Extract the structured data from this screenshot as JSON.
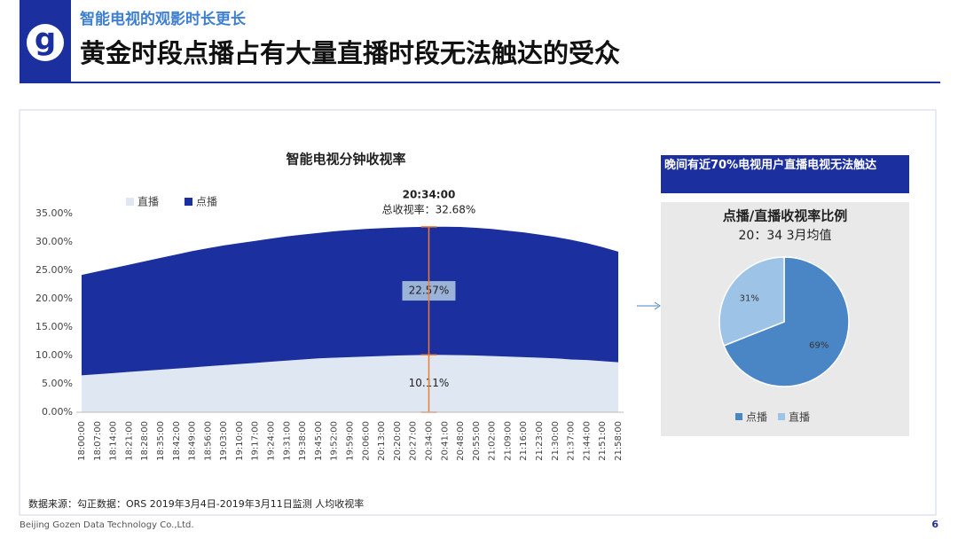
{
  "header": {
    "logo": "g",
    "kicker": "智能电视的观影时长更长",
    "title": "黄金时段点播占有大量直播时段无法触达的受众"
  },
  "chart_data": [
    {
      "type": "area",
      "stacked": true,
      "title": "智能电视分钟收视率",
      "categories": [
        "18:00:00",
        "18:07:00",
        "18:14:00",
        "18:21:00",
        "18:28:00",
        "18:35:00",
        "18:42:00",
        "18:49:00",
        "18:56:00",
        "19:03:00",
        "19:10:00",
        "19:17:00",
        "19:24:00",
        "19:31:00",
        "19:38:00",
        "19:45:00",
        "19:52:00",
        "19:59:00",
        "20:06:00",
        "20:13:00",
        "20:20:00",
        "20:27:00",
        "20:34:00",
        "20:41:00",
        "20:48:00",
        "20:55:00",
        "21:02:00",
        "21:09:00",
        "21:16:00",
        "21:23:00",
        "21:30:00",
        "21:37:00",
        "21:44:00",
        "21:51:00",
        "21:58:00"
      ],
      "series": [
        {
          "name": "直播",
          "color": "#dfe7f3",
          "values": [
            6.5,
            6.7,
            6.9,
            7.1,
            7.3,
            7.5,
            7.7,
            7.9,
            8.1,
            8.3,
            8.5,
            8.7,
            8.9,
            9.1,
            9.3,
            9.5,
            9.6,
            9.7,
            9.8,
            9.9,
            10.0,
            10.05,
            10.11,
            10.1,
            10.05,
            10.0,
            9.9,
            9.8,
            9.7,
            9.6,
            9.5,
            9.3,
            9.2,
            9.0,
            8.8
          ],
          "value_labels": [
            null,
            null,
            null,
            null,
            null,
            null,
            null,
            null,
            null,
            null,
            null,
            null,
            null,
            null,
            null,
            null,
            null,
            null,
            null,
            null,
            null,
            null,
            "10.11%",
            null,
            null,
            null,
            null,
            null,
            null,
            null,
            null,
            null,
            null,
            null,
            null
          ]
        },
        {
          "name": "点播",
          "color": "#1c2f9e",
          "values": [
            17.7,
            18.1,
            18.5,
            18.9,
            19.3,
            19.7,
            20.1,
            20.5,
            20.8,
            21.1,
            21.3,
            21.5,
            21.7,
            21.9,
            22.0,
            22.1,
            22.3,
            22.4,
            22.5,
            22.55,
            22.55,
            22.58,
            22.57,
            22.6,
            22.6,
            22.5,
            22.4,
            22.2,
            22.0,
            21.7,
            21.4,
            21.1,
            20.6,
            20.1,
            19.5
          ],
          "value_labels": [
            null,
            null,
            null,
            null,
            null,
            null,
            null,
            null,
            null,
            null,
            null,
            null,
            null,
            null,
            null,
            null,
            null,
            null,
            null,
            null,
            null,
            null,
            "22.57%",
            null,
            null,
            null,
            null,
            null,
            null,
            null,
            null,
            null,
            null,
            null,
            null
          ]
        }
      ],
      "ylim": [
        0,
        35
      ],
      "yticks": [
        {
          "value": 0,
          "label": "0.00%"
        },
        {
          "value": 5,
          "label": "5.00%"
        },
        {
          "value": 10,
          "label": "10.00%"
        },
        {
          "value": 15,
          "label": "15.00%"
        },
        {
          "value": 20,
          "label": "20.00%"
        },
        {
          "value": 25,
          "label": "25.00%"
        },
        {
          "value": 30,
          "label": "30.00%"
        },
        {
          "value": 35,
          "label": "35.00%"
        }
      ],
      "grid": false,
      "legend": "top-left",
      "annotations": [
        {
          "text": "20:34:00"
        },
        {
          "text": "总收视率：32.68%",
          "value": 32.68
        }
      ],
      "marker_color": "#ed7d31"
    },
    {
      "type": "pie",
      "title": "点播/直播收视率比例",
      "subtitle": "20：34 3月均值",
      "categories": [
        "点播",
        "直播"
      ],
      "values": [
        69,
        31
      ],
      "value_labels": [
        "69%",
        "31%"
      ],
      "colors": [
        "#4a86c5",
        "#9dc3e6"
      ],
      "legend": "bottom"
    }
  ],
  "callout": "晚间有近70%电视用户直播电视无法触达",
  "source": "数据来源：勾正数据：ORS 2019年3月4日-2019年3月11日监测 人均收视率",
  "footer": {
    "company": "Beijing Gozen Data Technology Co.,Ltd.",
    "page": "6"
  }
}
